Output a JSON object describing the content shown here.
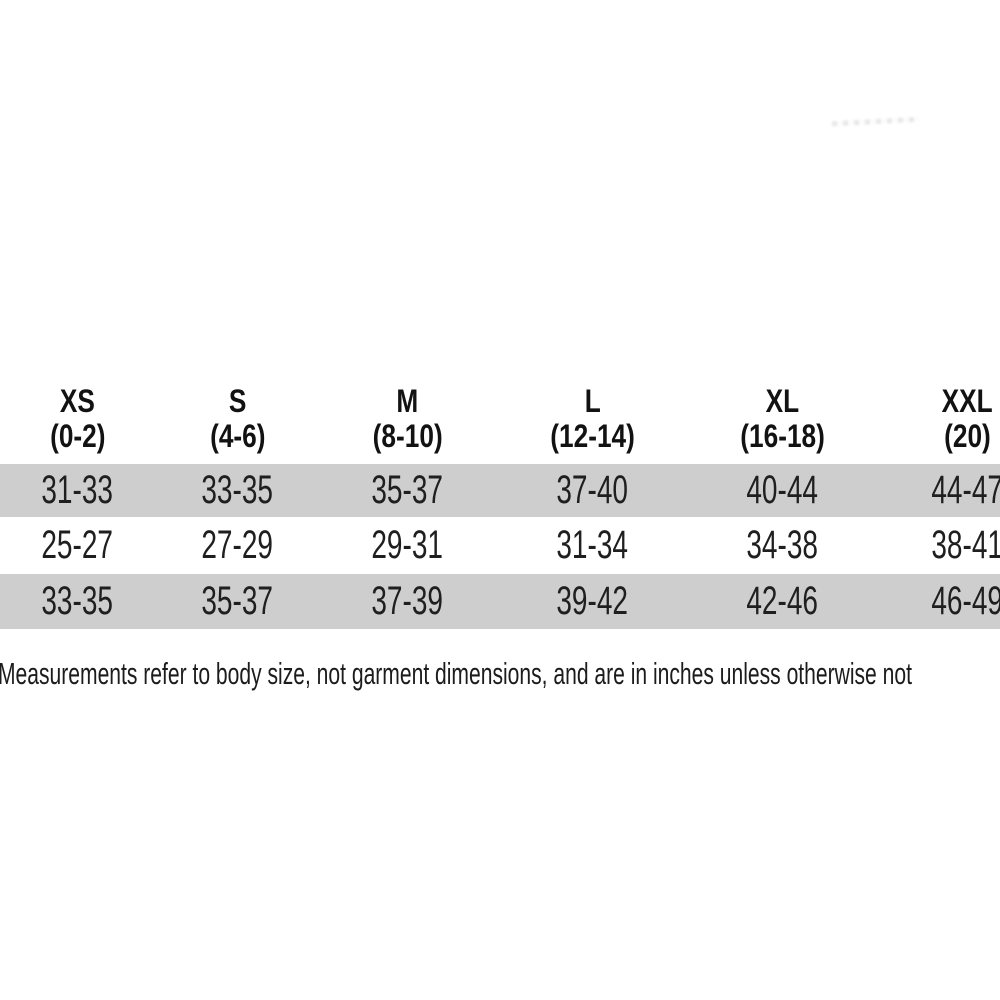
{
  "colors": {
    "background": "#ffffff",
    "row_stripe": "#cecece",
    "text": "#1c1c1c"
  },
  "note_text": "Measurements refer to body size, not garment dimensions, and are in inches unless otherwise not",
  "chart_data": {
    "type": "table",
    "title": "",
    "columns": [
      {
        "size": "XS",
        "range": "(0-2)"
      },
      {
        "size": "S",
        "range": "(4-6)"
      },
      {
        "size": "M",
        "range": "(8-10)"
      },
      {
        "size": "L",
        "range": "(12-14)"
      },
      {
        "size": "XL",
        "range": "(16-18)"
      },
      {
        "size": "XXL",
        "range": "(20)"
      }
    ],
    "rows": [
      [
        "31-33",
        "33-35",
        "35-37",
        "37-40",
        "40-44",
        "44-47"
      ],
      [
        "25-27",
        "27-29",
        "29-31",
        "31-34",
        "34-38",
        "38-41"
      ],
      [
        "33-35",
        "35-37",
        "37-39",
        "39-42",
        "42-46",
        "46-49"
      ]
    ],
    "row_stripes": [
      "gray",
      "white",
      "gray"
    ],
    "layout_hints": {
      "units": "inches",
      "right_edge_clipped": true,
      "grid": "none",
      "stripe_color": "#cecece"
    }
  }
}
